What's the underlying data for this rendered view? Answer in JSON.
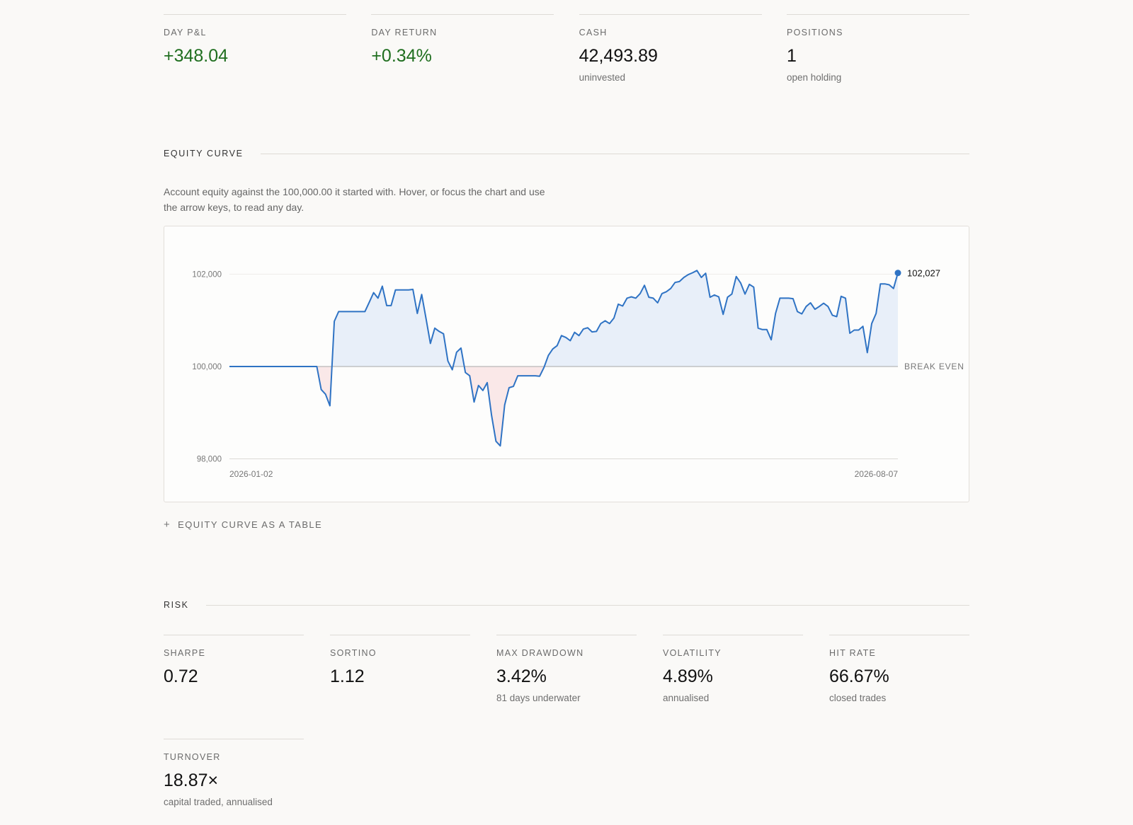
{
  "summary": [
    {
      "label": "DAY P&L",
      "value": "+348.04",
      "sub": "",
      "positive": true
    },
    {
      "label": "DAY RETURN",
      "value": "+0.34%",
      "sub": "",
      "positive": true
    },
    {
      "label": "CASH",
      "value": "42,493.89",
      "sub": "uninvested",
      "positive": false
    },
    {
      "label": "POSITIONS",
      "value": "1",
      "sub": "open holding",
      "positive": false
    }
  ],
  "equity_section": {
    "title": "EQUITY CURVE",
    "description": "Account equity against the 100,000.00 it started with. Hover, or focus the chart and use the arrow keys, to read any day.",
    "table_toggle_label": "EQUITY CURVE AS A TABLE",
    "table_toggle_icon": "plus-icon"
  },
  "chart_data": {
    "type": "line",
    "title": "",
    "xlabel": "",
    "ylabel": "",
    "ylim": [
      98000,
      102000
    ],
    "yticks": [
      "102,000",
      "100,000",
      "98,000"
    ],
    "x_start_label": "2026-01-02",
    "x_end_label": "2026-08-07",
    "baseline": 100000,
    "baseline_label": "BREAK EVEN",
    "last_value_label": "102,027",
    "line_color": "#2f73c4",
    "above_fill": "#e8eff9",
    "below_fill": "#fae8e8",
    "grid": true,
    "values": [
      100000,
      100000,
      100000,
      100000,
      100000,
      100000,
      100000,
      100000,
      100000,
      100000,
      100000,
      100000,
      100000,
      100000,
      100000,
      100000,
      100000,
      100000,
      100000,
      100000,
      100000,
      99500,
      99400,
      99150,
      100980,
      101190,
      101190,
      101190,
      101190,
      101190,
      101190,
      101190,
      101390,
      101600,
      101480,
      101740,
      101320,
      101320,
      101660,
      101660,
      101660,
      101660,
      101670,
      101150,
      101560,
      101040,
      100500,
      100830,
      100760,
      100710,
      100120,
      99930,
      100310,
      100400,
      99870,
      99800,
      99230,
      99590,
      99480,
      99650,
      98940,
      98380,
      98280,
      99170,
      99540,
      99570,
      99800,
      99800,
      99800,
      99800,
      99800,
      99790,
      99980,
      100240,
      100380,
      100450,
      100670,
      100630,
      100560,
      100740,
      100670,
      100810,
      100840,
      100750,
      100760,
      100930,
      100990,
      100930,
      101050,
      101350,
      101310,
      101480,
      101510,
      101480,
      101580,
      101760,
      101500,
      101480,
      101380,
      101580,
      101620,
      101690,
      101820,
      101840,
      101930,
      101990,
      102030,
      102080,
      101930,
      102020,
      101500,
      101550,
      101510,
      101130,
      101500,
      101570,
      101950,
      101810,
      101570,
      101780,
      101720,
      100830,
      100800,
      100800,
      100580,
      101150,
      101480,
      101480,
      101480,
      101470,
      101190,
      101140,
      101300,
      101380,
      101240,
      101300,
      101370,
      101300,
      101110,
      101080,
      101520,
      101480,
      100720,
      100790,
      100790,
      100870,
      100300,
      100930,
      101150,
      101790,
      101790,
      101770,
      101690,
      102027
    ]
  },
  "risk_section": {
    "title": "RISK",
    "metrics": [
      {
        "label": "SHARPE",
        "value": "0.72",
        "sub": ""
      },
      {
        "label": "SORTINO",
        "value": "1.12",
        "sub": ""
      },
      {
        "label": "MAX DRAWDOWN",
        "value": "3.42%",
        "sub": "81 days underwater"
      },
      {
        "label": "VOLATILITY",
        "value": "4.89%",
        "sub": "annualised"
      },
      {
        "label": "HIT RATE",
        "value": "66.67%",
        "sub": "closed trades"
      },
      {
        "label": "TURNOVER",
        "value": "18.87×",
        "sub": "capital traded, annualised"
      }
    ]
  }
}
